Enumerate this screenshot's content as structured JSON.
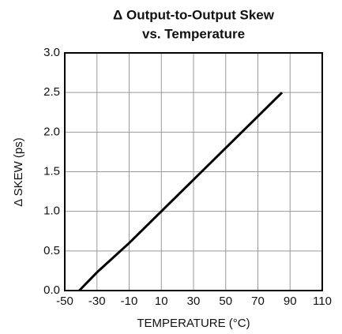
{
  "chart_data": {
    "type": "line",
    "title": "Δ  Output-to-Output Skew",
    "subtitle": "vs. Temperature",
    "x_label": "TEMPERATURE (°C)",
    "y_label": "Δ  SKEW (ps)",
    "x": [
      -41,
      -30,
      -10,
      10,
      30,
      50,
      70,
      85
    ],
    "series": [
      {
        "color": "#000000",
        "values": [
          0.0,
          0.23,
          0.6,
          1.0,
          1.4,
          1.8,
          2.2,
          2.5
        ]
      }
    ],
    "xlim": [
      -50,
      110
    ],
    "xticks": [
      -50,
      -30,
      -10,
      10,
      30,
      50,
      70,
      90,
      110
    ],
    "ylim": [
      0,
      3
    ],
    "yticks": [
      {
        "value": 0,
        "label": "0.0"
      },
      0.5,
      {
        "value": 1,
        "label": "1.0"
      },
      1.5,
      {
        "value": 2,
        "label": "2.0"
      },
      2.5,
      {
        "value": 3,
        "label": "3.0"
      }
    ],
    "grid": true
  }
}
